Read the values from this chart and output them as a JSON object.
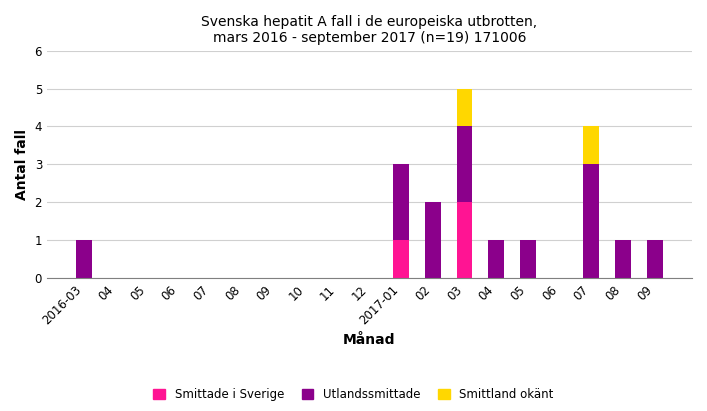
{
  "title": "Svenska hepatit A fall i de europeiska utbrotten,\nmars 2016 - september 2017 (n=19) 171006",
  "xlabel": "Månad",
  "ylabel": "Antal fall",
  "categories": [
    "2016-03",
    "04",
    "05",
    "06",
    "07",
    "08",
    "09",
    "10",
    "11",
    "12",
    "2017-01",
    "02",
    "03",
    "04",
    "05",
    "06",
    "07",
    "08",
    "09"
  ],
  "smittade_sverige": [
    0,
    0,
    0,
    0,
    0,
    0,
    0,
    0,
    0,
    0,
    1,
    0,
    2,
    0,
    0,
    0,
    0,
    0,
    0
  ],
  "utlandssmittade": [
    1,
    0,
    0,
    0,
    0,
    0,
    0,
    0,
    0,
    0,
    2,
    2,
    2,
    1,
    1,
    0,
    3,
    1,
    1
  ],
  "smittland_okant": [
    0,
    0,
    0,
    0,
    0,
    0,
    0,
    0,
    0,
    0,
    0,
    0,
    1,
    0,
    0,
    0,
    1,
    0,
    0
  ],
  "color_sverige": "#FF1493",
  "color_utland": "#8B008B",
  "color_okant": "#FFD700",
  "ylim": [
    0,
    6
  ],
  "yticks": [
    0,
    1,
    2,
    3,
    4,
    5,
    6
  ],
  "legend_labels": [
    "Smittade i Sverige",
    "Utlandssmittade",
    "Smittland okänt"
  ],
  "background_color": "#FFFFFF",
  "title_fontsize": 10,
  "axis_label_fontsize": 10,
  "tick_fontsize": 8.5,
  "bar_width": 0.5
}
